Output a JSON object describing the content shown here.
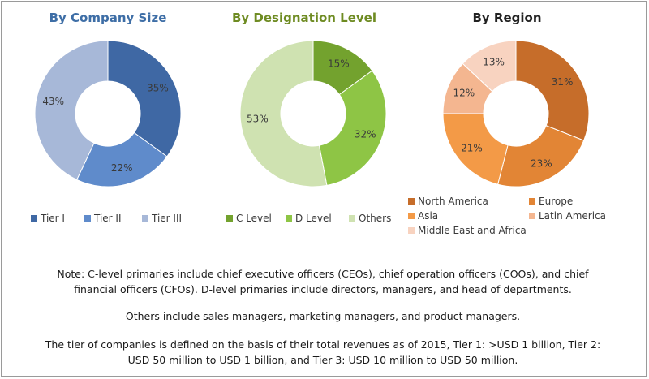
{
  "chart_data": [
    {
      "type": "pie",
      "variant": "donut",
      "title": "By Company Size",
      "categories": [
        "Tier I",
        "Tier II",
        "Tier III"
      ],
      "values": [
        35,
        22,
        43
      ],
      "labels": [
        "35%",
        "22%",
        "43%"
      ],
      "colors": [
        "#3f68a4",
        "#5f8bcb",
        "#a7b8d8"
      ],
      "legend_position": "bottom"
    },
    {
      "type": "pie",
      "variant": "donut",
      "title": "By Designation Level",
      "categories": [
        "C Level",
        "D Level",
        "Others"
      ],
      "values": [
        15,
        32,
        53
      ],
      "labels": [
        "15%",
        "32%",
        "53%"
      ],
      "colors": [
        "#73a22e",
        "#8ec545",
        "#cfe2b1"
      ],
      "legend_position": "bottom"
    },
    {
      "type": "pie",
      "variant": "donut",
      "title": "By Region",
      "categories": [
        "North America",
        "Europe",
        "Asia",
        "Latin America",
        "Middle East and Africa"
      ],
      "values": [
        31,
        23,
        21,
        12,
        13
      ],
      "labels": [
        "31%",
        "23%",
        "21%",
        "12%",
        "13%"
      ],
      "colors": [
        "#c66d2a",
        "#e28535",
        "#f39a47",
        "#f4b690",
        "#f8d3c0"
      ],
      "legend_position": "bottom"
    }
  ],
  "notes": {
    "line1": "Note: C-level primaries include chief executive officers (CEOs), chief operation officers (COOs), and chief",
    "line2": "financial officers (CFOs). D-level primaries include directors, managers, and head of departments.",
    "line3": "Others include sales managers, marketing managers, and product managers.",
    "line4": "The tier of companies is defined on the basis of their total revenues as of 2015, Tier 1: >USD 1 billion, Tier 2:",
    "line5": "USD 50 million to USD 1 billion, and Tier 3: USD 10 million to USD 50 million."
  }
}
